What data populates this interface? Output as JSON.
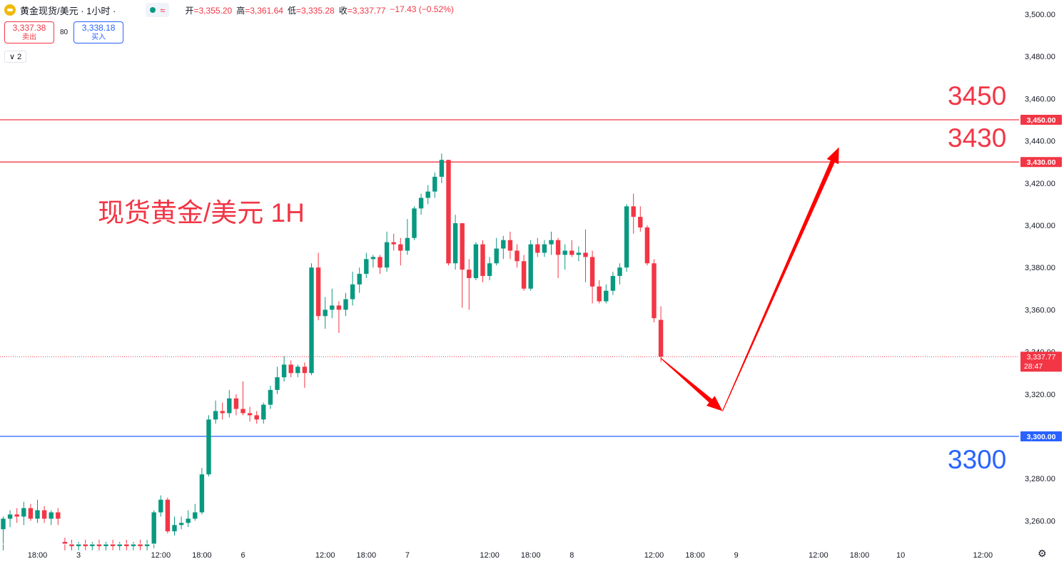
{
  "header": {
    "symbol_title": "黄金现货/美元 · 1小时 ·",
    "wave_icon": "≈",
    "ohlc": [
      {
        "k": "开",
        "v": "=3,355.20"
      },
      {
        "k": "高",
        "v": "=3,361.64"
      },
      {
        "k": "低",
        "v": "=3,335.28"
      },
      {
        "k": "收",
        "v": "=3,337.77"
      },
      {
        "k": "",
        "v": "−17.43 (−0.52%)"
      }
    ]
  },
  "trade": {
    "sell_price": "3,337.38",
    "sell_label": "卖出",
    "spread": "80",
    "buy_price": "3,338.18",
    "buy_label": "买入"
  },
  "indicator_toggle": "∨ 2",
  "annotations": {
    "title": "现货黄金/美元 1H",
    "label_3450": "3450",
    "label_3430": "3430",
    "label_3300": "3300"
  },
  "colors": {
    "up": "#089981",
    "down": "#f23645",
    "resistance": "#f23645",
    "support": "#2962ff",
    "arrow": "#ff0000"
  },
  "chart_data": {
    "type": "candlestick",
    "ylim": [
      3245,
      3503
    ],
    "y_ticks": [
      {
        "v": 3500,
        "t": "3,500.00"
      },
      {
        "v": 3480,
        "t": "3,480.00"
      },
      {
        "v": 3460,
        "t": "3,460.00"
      },
      {
        "v": 3440,
        "t": "3,440.00"
      },
      {
        "v": 3420,
        "t": "3,420.00"
      },
      {
        "v": 3400,
        "t": "3,400.00"
      },
      {
        "v": 3380,
        "t": "3,380.00"
      },
      {
        "v": 3360,
        "t": "3,360.00"
      },
      {
        "v": 3340,
        "t": "3,340.00"
      },
      {
        "v": 3320,
        "t": "3,320.00"
      },
      {
        "v": 3280,
        "t": "3,280.00"
      },
      {
        "v": 3260,
        "t": "3,260.00"
      }
    ],
    "x_ticks": [
      {
        "i": 5,
        "t": "18:00"
      },
      {
        "i": 11,
        "t": "3"
      },
      {
        "i": 23,
        "t": "12:00"
      },
      {
        "i": 29,
        "t": "18:00"
      },
      {
        "i": 35,
        "t": "6"
      },
      {
        "i": 47,
        "t": "12:00"
      },
      {
        "i": 53,
        "t": "18:00"
      },
      {
        "i": 59,
        "t": "7"
      },
      {
        "i": 71,
        "t": "12:00"
      },
      {
        "i": 77,
        "t": "18:00"
      },
      {
        "i": 83,
        "t": "8"
      },
      {
        "i": 95,
        "t": "12:00"
      },
      {
        "i": 101,
        "t": "18:00"
      },
      {
        "i": 107,
        "t": "9"
      },
      {
        "i": 119,
        "t": "12:00"
      },
      {
        "i": 125,
        "t": "18:00"
      },
      {
        "i": 131,
        "t": "10"
      },
      {
        "i": 143,
        "t": "12:00"
      }
    ],
    "candles": [
      {
        "o": 3256,
        "h": 3262,
        "l": 3246,
        "c": 3261
      },
      {
        "o": 3261,
        "h": 3265,
        "l": 3257,
        "c": 3263
      },
      {
        "o": 3263,
        "h": 3266,
        "l": 3259,
        "c": 3262
      },
      {
        "o": 3262,
        "h": 3269,
        "l": 3258,
        "c": 3266
      },
      {
        "o": 3266,
        "h": 3268,
        "l": 3260,
        "c": 3261
      },
      {
        "o": 3261,
        "h": 3270,
        "l": 3259,
        "c": 3265
      },
      {
        "o": 3265,
        "h": 3267,
        "l": 3259,
        "c": 3261
      },
      {
        "o": 3261,
        "h": 3265,
        "l": 3258,
        "c": 3264
      },
      {
        "o": 3264,
        "h": 3266,
        "l": 3258,
        "c": 3261
      },
      {
        "o": 3250,
        "h": 3252,
        "l": 3246,
        "c": 3249
      },
      {
        "o": 3249,
        "h": 3251,
        "l": 3246,
        "c": 3248
      },
      {
        "o": 3248,
        "h": 3250,
        "l": 3246,
        "c": 3249
      },
      {
        "o": 3249,
        "h": 3251,
        "l": 3246,
        "c": 3248
      },
      {
        "o": 3248,
        "h": 3250,
        "l": 3246,
        "c": 3249
      },
      {
        "o": 3249,
        "h": 3251,
        "l": 3246,
        "c": 3248
      },
      {
        "o": 3248,
        "h": 3250,
        "l": 3246,
        "c": 3249
      },
      {
        "o": 3249,
        "h": 3251,
        "l": 3246,
        "c": 3248
      },
      {
        "o": 3248,
        "h": 3250,
        "l": 3246,
        "c": 3249
      },
      {
        "o": 3249,
        "h": 3251,
        "l": 3246,
        "c": 3248
      },
      {
        "o": 3248,
        "h": 3250,
        "l": 3246,
        "c": 3249
      },
      {
        "o": 3249,
        "h": 3251,
        "l": 3246,
        "c": 3248
      },
      {
        "o": 3248,
        "h": 3251,
        "l": 3246,
        "c": 3249
      },
      {
        "o": 3249,
        "h": 3265,
        "l": 3247,
        "c": 3264
      },
      {
        "o": 3264,
        "h": 3272,
        "l": 3262,
        "c": 3270
      },
      {
        "o": 3270,
        "h": 3271,
        "l": 3254,
        "c": 3255
      },
      {
        "o": 3255,
        "h": 3262,
        "l": 3253,
        "c": 3258
      },
      {
        "o": 3258,
        "h": 3262,
        "l": 3256,
        "c": 3259
      },
      {
        "o": 3259,
        "h": 3265,
        "l": 3257,
        "c": 3261
      },
      {
        "o": 3261,
        "h": 3268,
        "l": 3260,
        "c": 3264
      },
      {
        "o": 3264,
        "h": 3285,
        "l": 3263,
        "c": 3282
      },
      {
        "o": 3282,
        "h": 3310,
        "l": 3281,
        "c": 3308
      },
      {
        "o": 3308,
        "h": 3317,
        "l": 3306,
        "c": 3312
      },
      {
        "o": 3312,
        "h": 3316,
        "l": 3308,
        "c": 3311
      },
      {
        "o": 3311,
        "h": 3322,
        "l": 3309,
        "c": 3318
      },
      {
        "o": 3318,
        "h": 3320,
        "l": 3310,
        "c": 3313
      },
      {
        "o": 3313,
        "h": 3326,
        "l": 3310,
        "c": 3311
      },
      {
        "o": 3311,
        "h": 3314,
        "l": 3307,
        "c": 3310
      },
      {
        "o": 3310,
        "h": 3312,
        "l": 3306,
        "c": 3308
      },
      {
        "o": 3308,
        "h": 3316,
        "l": 3306,
        "c": 3315
      },
      {
        "o": 3315,
        "h": 3324,
        "l": 3313,
        "c": 3322
      },
      {
        "o": 3322,
        "h": 3333,
        "l": 3320,
        "c": 3328
      },
      {
        "o": 3328,
        "h": 3338,
        "l": 3326,
        "c": 3334
      },
      {
        "o": 3334,
        "h": 3336,
        "l": 3328,
        "c": 3330
      },
      {
        "o": 3330,
        "h": 3334,
        "l": 3328,
        "c": 3333
      },
      {
        "o": 3333,
        "h": 3335,
        "l": 3323,
        "c": 3330
      },
      {
        "o": 3330,
        "h": 3382,
        "l": 3329,
        "c": 3380
      },
      {
        "o": 3380,
        "h": 3387,
        "l": 3355,
        "c": 3357
      },
      {
        "o": 3357,
        "h": 3366,
        "l": 3351,
        "c": 3360
      },
      {
        "o": 3360,
        "h": 3370,
        "l": 3356,
        "c": 3362
      },
      {
        "o": 3362,
        "h": 3364,
        "l": 3349,
        "c": 3360
      },
      {
        "o": 3360,
        "h": 3368,
        "l": 3357,
        "c": 3365
      },
      {
        "o": 3365,
        "h": 3378,
        "l": 3362,
        "c": 3372
      },
      {
        "o": 3372,
        "h": 3380,
        "l": 3368,
        "c": 3377
      },
      {
        "o": 3377,
        "h": 3387,
        "l": 3375,
        "c": 3384
      },
      {
        "o": 3384,
        "h": 3386,
        "l": 3380,
        "c": 3385
      },
      {
        "o": 3385,
        "h": 3386,
        "l": 3377,
        "c": 3380
      },
      {
        "o": 3380,
        "h": 3397,
        "l": 3378,
        "c": 3392
      },
      {
        "o": 3392,
        "h": 3396,
        "l": 3388,
        "c": 3391
      },
      {
        "o": 3391,
        "h": 3394,
        "l": 3381,
        "c": 3388
      },
      {
        "o": 3388,
        "h": 3403,
        "l": 3386,
        "c": 3394
      },
      {
        "o": 3394,
        "h": 3409,
        "l": 3393,
        "c": 3408
      },
      {
        "o": 3408,
        "h": 3415,
        "l": 3405,
        "c": 3413
      },
      {
        "o": 3413,
        "h": 3419,
        "l": 3410,
        "c": 3416
      },
      {
        "o": 3416,
        "h": 3425,
        "l": 3413,
        "c": 3423
      },
      {
        "o": 3423,
        "h": 3434,
        "l": 3420,
        "c": 3431
      },
      {
        "o": 3431,
        "h": 3431,
        "l": 3381,
        "c": 3382
      },
      {
        "o": 3382,
        "h": 3405,
        "l": 3379,
        "c": 3401
      },
      {
        "o": 3401,
        "h": 3401,
        "l": 3361,
        "c": 3379
      },
      {
        "o": 3379,
        "h": 3384,
        "l": 3360,
        "c": 3375
      },
      {
        "o": 3375,
        "h": 3392,
        "l": 3374,
        "c": 3391
      },
      {
        "o": 3391,
        "h": 3393,
        "l": 3373,
        "c": 3376
      },
      {
        "o": 3376,
        "h": 3385,
        "l": 3374,
        "c": 3382
      },
      {
        "o": 3382,
        "h": 3394,
        "l": 3381,
        "c": 3389
      },
      {
        "o": 3389,
        "h": 3395,
        "l": 3384,
        "c": 3393
      },
      {
        "o": 3393,
        "h": 3397,
        "l": 3384,
        "c": 3388
      },
      {
        "o": 3388,
        "h": 3391,
        "l": 3380,
        "c": 3383
      },
      {
        "o": 3383,
        "h": 3386,
        "l": 3369,
        "c": 3370
      },
      {
        "o": 3370,
        "h": 3393,
        "l": 3369,
        "c": 3391
      },
      {
        "o": 3391,
        "h": 3394,
        "l": 3385,
        "c": 3387
      },
      {
        "o": 3387,
        "h": 3393,
        "l": 3385,
        "c": 3391
      },
      {
        "o": 3391,
        "h": 3397,
        "l": 3386,
        "c": 3393
      },
      {
        "o": 3393,
        "h": 3394,
        "l": 3375,
        "c": 3386
      },
      {
        "o": 3386,
        "h": 3391,
        "l": 3379,
        "c": 3388
      },
      {
        "o": 3388,
        "h": 3393,
        "l": 3385,
        "c": 3386
      },
      {
        "o": 3386,
        "h": 3390,
        "l": 3383,
        "c": 3387
      },
      {
        "o": 3387,
        "h": 3398,
        "l": 3373,
        "c": 3385
      },
      {
        "o": 3385,
        "h": 3388,
        "l": 3363,
        "c": 3371
      },
      {
        "o": 3371,
        "h": 3374,
        "l": 3363,
        "c": 3364
      },
      {
        "o": 3364,
        "h": 3372,
        "l": 3363,
        "c": 3369
      },
      {
        "o": 3369,
        "h": 3378,
        "l": 3367,
        "c": 3376
      },
      {
        "o": 3376,
        "h": 3382,
        "l": 3372,
        "c": 3380
      },
      {
        "o": 3380,
        "h": 3410,
        "l": 3378,
        "c": 3409
      },
      {
        "o": 3409,
        "h": 3415,
        "l": 3396,
        "c": 3404
      },
      {
        "o": 3404,
        "h": 3409,
        "l": 3397,
        "c": 3399
      },
      {
        "o": 3399,
        "h": 3400,
        "l": 3381,
        "c": 3382
      },
      {
        "o": 3382,
        "h": 3384,
        "l": 3354,
        "c": 3356
      },
      {
        "o": 3355.2,
        "h": 3361.64,
        "l": 3335.28,
        "c": 3337.77
      }
    ],
    "horizontal_lines": [
      {
        "value": 3450,
        "label": "3,450.00",
        "color": "#f23645"
      },
      {
        "value": 3430,
        "label": "3,430.00",
        "color": "#f23645"
      },
      {
        "value": 3300,
        "label": "3,300.00",
        "color": "#2962ff"
      }
    ],
    "last_price": {
      "value": 3337.77,
      "label": "3,337.77",
      "countdown": "28:47"
    },
    "projection": [
      {
        "i": 96,
        "v": 3337
      },
      {
        "i": 105,
        "v": 3312
      },
      {
        "i": 122,
        "v": 3437
      }
    ]
  }
}
